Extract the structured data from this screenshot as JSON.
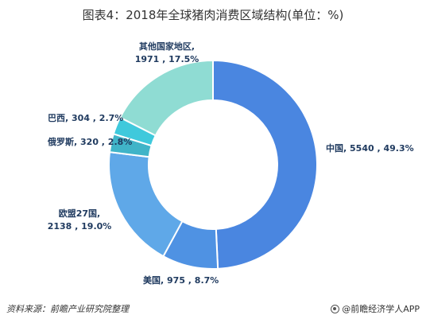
{
  "title": "图表4：2018年全球猪肉消费区域结构(单位：%)",
  "source": "资料来源：前瞻产业研究院整理",
  "brand": "@前瞻经济学人APP",
  "colors": {
    "中国": "#4a86e0",
    "美国": "#4f92e3",
    "欧盟27国": "#5fa8e8",
    "俄罗斯": "#40b4c8",
    "巴西": "#3fc9dc",
    "其他国家地区": "#8fdcd3"
  },
  "chart_data": {
    "type": "pie",
    "donut": true,
    "title": "图表4：2018年全球猪肉消费区域结构(单位：%)",
    "slices": [
      {
        "label": "中国",
        "value": 5540,
        "percent": 49.3,
        "text": "5540 , 49.3%"
      },
      {
        "label": "美国",
        "value": 975,
        "percent": 8.7,
        "text": "975 , 8.7%"
      },
      {
        "label": "欧盟27国",
        "value": 2138,
        "percent": 19.0,
        "text": "2138 , 19.0%"
      },
      {
        "label": "俄罗斯",
        "value": 320,
        "percent": 2.8,
        "text": "320 , 2.8%"
      },
      {
        "label": "巴西",
        "value": 304,
        "percent": 2.7,
        "text": "304 , 2.7%"
      },
      {
        "label": "其他国家地区",
        "value": 1971,
        "percent": 17.5,
        "text": "1971 , 17.5%"
      }
    ]
  }
}
